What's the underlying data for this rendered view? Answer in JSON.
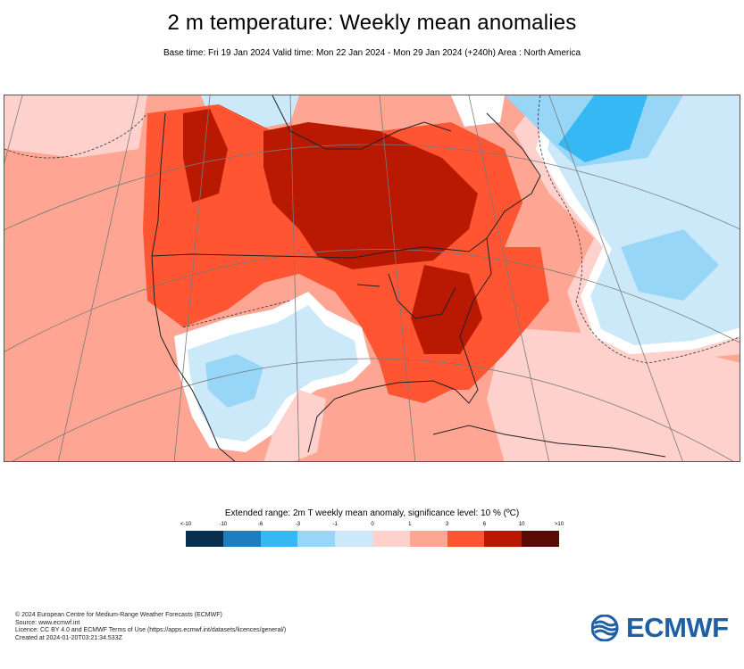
{
  "header": {
    "title": "2 m temperature: Weekly mean anomalies",
    "subtitle": "Base time: Fri 19 Jan 2024 Valid time: Mon 22 Jan 2024 - Mon 29 Jan 2024 (+240h) Area : North America"
  },
  "legend": {
    "title": "Extended range: 2m T weekly mean anomaly, significance level: 10 % (ºC)",
    "labels": [
      "<-10",
      "-10",
      "-6",
      "-3",
      "-1",
      "0",
      "1",
      "3",
      "6",
      "10",
      ">10"
    ],
    "colors": [
      "#08304e",
      "#1c7dc1",
      "#35b8f4",
      "#98d6f7",
      "#cce9f9",
      "#ffd1cc",
      "#ffa593",
      "#ff5532",
      "#b91900",
      "#5a0c04"
    ]
  },
  "footer": {
    "lines": [
      "© 2024 European Centre for Medium-Range Weather Forecasts (ECMWF)",
      "Source: www.ecmwf.int",
      "Licence: CC BY 4.0 and ECMWF Terms of Use (https://apps.ecmwf.int/datasets/licences/general/)",
      "Created at 2024-01-20T03:21:34.533Z"
    ]
  },
  "logo": {
    "text": "ECMWF",
    "icon": "ecmwf-logo-icon"
  }
}
